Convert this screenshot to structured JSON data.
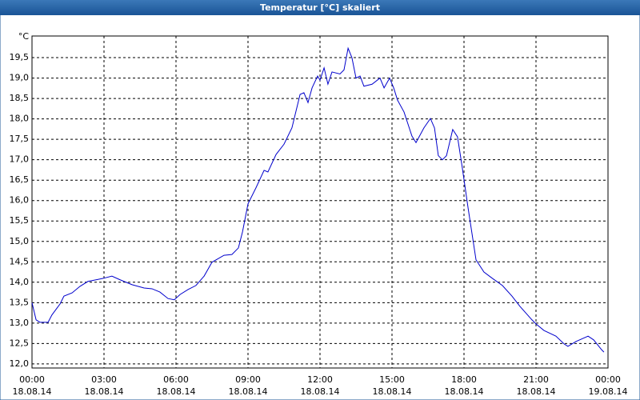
{
  "chart_data": {
    "type": "line",
    "title": "Temperatur [°C] skaliert",
    "y_unit": "°C",
    "xlim": [
      0,
      24
    ],
    "ylim": [
      11.9,
      20.03
    ],
    "grid": true,
    "xticks": [
      {
        "value": 0,
        "label": "00:00",
        "date": "18.08.14"
      },
      {
        "value": 3,
        "label": "03:00",
        "date": "18.08.14"
      },
      {
        "value": 6,
        "label": "06:00",
        "date": "18.08.14"
      },
      {
        "value": 9,
        "label": "09:00",
        "date": "18.08.14"
      },
      {
        "value": 12,
        "label": "12:00",
        "date": "18.08.14"
      },
      {
        "value": 15,
        "label": "15:00",
        "date": "18.08.14"
      },
      {
        "value": 18,
        "label": "18:00",
        "date": "18.08.14"
      },
      {
        "value": 21,
        "label": "21:00",
        "date": "18.08.14"
      },
      {
        "value": 24,
        "label": "00:00",
        "date": "19.08.14"
      }
    ],
    "yticks": [
      {
        "value": 12,
        "label": "12,0"
      },
      {
        "value": 12.5,
        "label": "12,5"
      },
      {
        "value": 13,
        "label": "13,0"
      },
      {
        "value": 13.5,
        "label": "13,5"
      },
      {
        "value": 14,
        "label": "14,0"
      },
      {
        "value": 14.5,
        "label": "14,5"
      },
      {
        "value": 15,
        "label": "15,0"
      },
      {
        "value": 15.5,
        "label": "15,5"
      },
      {
        "value": 16,
        "label": "16,0"
      },
      {
        "value": 16.5,
        "label": "16,5"
      },
      {
        "value": 17,
        "label": "17,0"
      },
      {
        "value": 17.5,
        "label": "17,5"
      },
      {
        "value": 18,
        "label": "18,0"
      },
      {
        "value": 18.5,
        "label": "18,5"
      },
      {
        "value": 19,
        "label": "19,0"
      },
      {
        "value": 19.5,
        "label": "19,5"
      }
    ],
    "series": [
      {
        "color": "#0000cc",
        "x": [
          0,
          0.17,
          0.33,
          0.67,
          0.83,
          1.17,
          1.33,
          1.67,
          2,
          2.33,
          2.67,
          3,
          3.33,
          3.67,
          4.17,
          4.67,
          5,
          5.33,
          5.67,
          5.93,
          6.17,
          6.5,
          6.83,
          7.17,
          7.5,
          8,
          8.33,
          8.6,
          8.77,
          9,
          9.33,
          9.67,
          9.83,
          10.17,
          10.5,
          10.83,
          11.17,
          11.33,
          11.5,
          11.67,
          11.9,
          12,
          12.17,
          12.33,
          12.5,
          12.83,
          13,
          13.17,
          13.33,
          13.5,
          13.67,
          13.83,
          14.17,
          14.5,
          14.67,
          14.9,
          15.07,
          15.23,
          15.5,
          15.83,
          16,
          16.33,
          16.6,
          16.77,
          16.93,
          17.1,
          17.27,
          17.53,
          17.73,
          17.93,
          18.17,
          18.5,
          18.83,
          19.17,
          19.6,
          20,
          20.33,
          20.83,
          21,
          21.33,
          21.83,
          22.17,
          22.33,
          22.67,
          23.17,
          23.4,
          23.73,
          23.83
        ],
        "values": [
          13.5,
          13.08,
          13.02,
          13.02,
          13.2,
          13.47,
          13.66,
          13.74,
          13.9,
          14.02,
          14.06,
          14.1,
          14.15,
          14.06,
          13.94,
          13.86,
          13.84,
          13.76,
          13.6,
          13.57,
          13.7,
          13.82,
          13.92,
          14.15,
          14.49,
          14.66,
          14.68,
          14.84,
          15.23,
          15.92,
          16.31,
          16.74,
          16.7,
          17.13,
          17.38,
          17.78,
          18.6,
          18.64,
          18.4,
          18.76,
          19.05,
          18.95,
          19.25,
          18.85,
          19.15,
          19.1,
          19.2,
          19.73,
          19.5,
          19.0,
          19.05,
          18.8,
          18.85,
          19.0,
          18.76,
          19.0,
          18.76,
          18.46,
          18.17,
          17.58,
          17.42,
          17.78,
          18.01,
          17.78,
          17.1,
          17.0,
          17.1,
          17.74,
          17.56,
          16.8,
          15.82,
          14.55,
          14.25,
          14.1,
          13.92,
          13.66,
          13.41,
          13.08,
          12.98,
          12.82,
          12.68,
          12.49,
          12.43,
          12.55,
          12.68,
          12.59,
          12.35,
          12.29
        ]
      }
    ]
  }
}
